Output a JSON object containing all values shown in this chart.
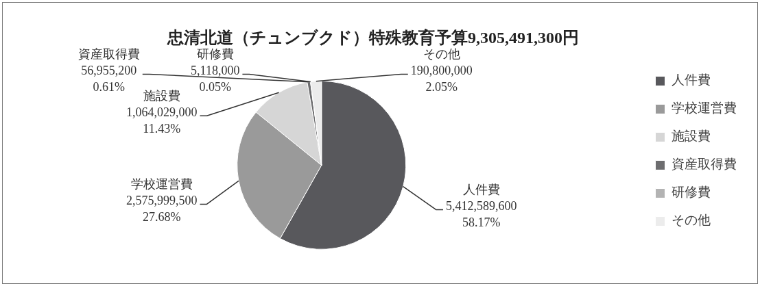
{
  "chart_data": {
    "type": "pie",
    "title": "忠清北道（チュンブクド）特殊教育予算9,305,491,300円",
    "categories": [
      "人件費",
      "学校運営費",
      "施設費",
      "資産取得費",
      "研修費",
      "その他"
    ],
    "values": [
      5412589600,
      2575999500,
      1064029000,
      56955200,
      5118000,
      190800000
    ],
    "colors": [
      "#58585c",
      "#9a9a9a",
      "#d6d6d6",
      "#6d6d6f",
      "#b3b3b3",
      "#ececec"
    ],
    "value_labels": [
      "5,412,589,600\n58.17%",
      "2,575,999,500\n27.68%",
      "1,064,029,000\n11.43%",
      "56,955,200\n0.61%",
      "5,118,000\n0.05%",
      "190,800,000\n2.05%"
    ],
    "legend": "right"
  }
}
